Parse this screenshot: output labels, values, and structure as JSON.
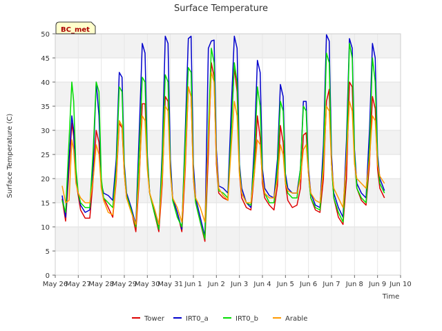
{
  "chart_data": {
    "type": "line",
    "title": "Surface Temperature",
    "xlabel": "Time",
    "ylabel": "Surface Temperature (C)",
    "ylim": [
      0,
      50
    ],
    "xlim": [
      0,
      15
    ],
    "yticks": [
      0,
      5,
      10,
      15,
      20,
      25,
      30,
      35,
      40,
      45,
      50
    ],
    "xticks": [
      {
        "x": 0,
        "label": "May 26"
      },
      {
        "x": 1,
        "label": "May 27"
      },
      {
        "x": 2,
        "label": "May 28"
      },
      {
        "x": 3,
        "label": "May 29"
      },
      {
        "x": 4,
        "label": "May 30"
      },
      {
        "x": 5,
        "label": "May 31"
      },
      {
        "x": 6,
        "label": "Jun 1"
      },
      {
        "x": 7,
        "label": "Jun 2"
      },
      {
        "x": 8,
        "label": "Jun 3"
      },
      {
        "x": 9,
        "label": "Jun 4"
      },
      {
        "x": 10,
        "label": "Jun 5"
      },
      {
        "x": 11,
        "label": "Jun 6"
      },
      {
        "x": 12,
        "label": "Jun 7"
      },
      {
        "x": 13,
        "label": "Jun 8"
      },
      {
        "x": 14,
        "label": "Jun 9"
      },
      {
        "x": 15,
        "label": "Jun 10"
      }
    ],
    "annotation": "BC_met",
    "grid": "horizontal bands",
    "legend_position": "bottom",
    "series": [
      {
        "name": "Tower",
        "color": "#dd0000",
        "x": [
          0.3,
          0.45,
          0.6,
          0.72,
          0.8,
          0.9,
          1.0,
          1.1,
          1.3,
          1.5,
          1.65,
          1.78,
          1.9,
          2.0,
          2.1,
          2.3,
          2.5,
          2.65,
          2.78,
          2.9,
          3.0,
          3.1,
          3.3,
          3.5,
          3.65,
          3.78,
          3.9,
          4.0,
          4.1,
          4.3,
          4.5,
          4.65,
          4.78,
          4.9,
          5.0,
          5.1,
          5.3,
          5.5,
          5.65,
          5.78,
          5.9,
          6.0,
          6.1,
          6.3,
          6.5,
          6.65,
          6.78,
          6.9,
          7.0,
          7.1,
          7.3,
          7.5,
          7.65,
          7.78,
          7.9,
          8.0,
          8.1,
          8.3,
          8.5,
          8.65,
          8.78,
          8.9,
          9.0,
          9.1,
          9.3,
          9.5,
          9.65,
          9.78,
          9.9,
          10.0,
          10.1,
          10.3,
          10.5,
          10.65,
          10.78,
          10.9,
          11.0,
          11.1,
          11.3,
          11.5,
          11.65,
          11.78,
          11.9,
          12.0,
          12.1,
          12.3,
          12.5,
          12.65,
          12.78,
          12.9,
          13.0,
          13.1,
          13.3,
          13.5,
          13.65,
          13.78,
          13.9,
          14.0,
          14.1,
          14.3
        ],
        "y": [
          15.8,
          11.2,
          22,
          31.5,
          28.8,
          19.5,
          16.5,
          13.5,
          11.8,
          11.8,
          20,
          30,
          27.5,
          18,
          16,
          14,
          12,
          19.5,
          31.5,
          30.5,
          21,
          16,
          13.5,
          9,
          20,
          35.5,
          35.5,
          23,
          17,
          13,
          9,
          19,
          37,
          36,
          22,
          16,
          13,
          9,
          22,
          39,
          37,
          20,
          15,
          11,
          7,
          25,
          44,
          41,
          23,
          17,
          16,
          15.5,
          32,
          43,
          38,
          21,
          16,
          14,
          13.5,
          21,
          33,
          28.5,
          19,
          16,
          14.5,
          13.5,
          18.5,
          31,
          27.5,
          19,
          15.5,
          14,
          14.5,
          18,
          29,
          29.5,
          21,
          16,
          13.5,
          13,
          20,
          36,
          38.5,
          23,
          16,
          12,
          10.5,
          20,
          40,
          39,
          24,
          18,
          15.5,
          14.5,
          23,
          37,
          34.5,
          22,
          18,
          16
        ]
      },
      {
        "name": "IRT0_a",
        "color": "#0000cc",
        "x": [
          0.3,
          0.45,
          0.6,
          0.72,
          0.8,
          0.9,
          1.0,
          1.1,
          1.3,
          1.5,
          1.65,
          1.78,
          1.9,
          2.0,
          2.1,
          2.3,
          2.5,
          2.65,
          2.78,
          2.9,
          3.0,
          3.1,
          3.3,
          3.5,
          3.65,
          3.78,
          3.9,
          4.0,
          4.1,
          4.3,
          4.5,
          4.65,
          4.78,
          4.9,
          5.0,
          5.1,
          5.3,
          5.5,
          5.65,
          5.78,
          5.9,
          6.0,
          6.1,
          6.3,
          6.5,
          6.65,
          6.78,
          6.9,
          7.0,
          7.1,
          7.3,
          7.5,
          7.65,
          7.78,
          7.9,
          8.0,
          8.1,
          8.3,
          8.5,
          8.65,
          8.78,
          8.9,
          9.0,
          9.1,
          9.3,
          9.5,
          9.65,
          9.78,
          9.9,
          10.0,
          10.1,
          10.3,
          10.5,
          10.65,
          10.78,
          10.9,
          11.0,
          11.1,
          11.3,
          11.5,
          11.65,
          11.78,
          11.9,
          12.0,
          12.1,
          12.3,
          12.5,
          12.65,
          12.78,
          12.9,
          13.0,
          13.1,
          13.3,
          13.5,
          13.65,
          13.78,
          13.9,
          14.0,
          14.1,
          14.3
        ],
        "y": [
          16.5,
          12,
          24,
          33,
          30,
          20,
          17,
          14.5,
          13,
          13.5,
          23,
          40,
          33,
          19,
          17,
          16.5,
          15.5,
          24,
          42,
          41,
          23,
          17,
          14,
          10.5,
          30,
          48,
          46,
          25,
          17,
          13.5,
          9.5,
          26,
          49.5,
          48,
          24,
          16,
          13,
          9.5,
          30,
          49,
          49.5,
          23,
          16,
          12,
          8,
          47,
          48.5,
          48.7,
          26,
          18.5,
          18,
          17,
          35,
          49.5,
          47,
          23,
          18,
          15,
          14,
          27,
          44.5,
          42,
          22,
          18,
          16.5,
          16,
          24,
          39.5,
          37,
          21,
          18,
          17,
          17,
          22,
          36,
          36,
          22,
          17,
          14.5,
          14,
          27,
          49.8,
          48.5,
          25,
          17,
          14,
          12,
          28,
          49,
          47,
          26,
          19,
          17,
          16,
          30,
          48,
          45,
          25,
          20,
          17.5
        ]
      },
      {
        "name": "IRT0_b",
        "color": "#00dd00",
        "x": [
          0.3,
          0.45,
          0.6,
          0.72,
          0.8,
          0.9,
          1.0,
          1.1,
          1.3,
          1.5,
          1.65,
          1.78,
          1.9,
          2.0,
          2.1,
          2.3,
          2.5,
          2.65,
          2.78,
          2.9,
          3.0,
          3.1,
          3.3,
          3.5,
          3.65,
          3.78,
          3.9,
          4.0,
          4.1,
          4.3,
          4.5,
          4.65,
          4.78,
          4.9,
          5.0,
          5.1,
          5.3,
          5.5,
          5.65,
          5.78,
          5.9,
          6.0,
          6.1,
          6.3,
          6.5,
          6.65,
          6.78,
          6.9,
          7.0,
          7.1,
          7.3,
          7.5,
          7.65,
          7.78,
          7.9,
          8.0,
          8.1,
          8.3,
          8.5,
          8.65,
          8.78,
          8.9,
          9.0,
          9.1,
          9.3,
          9.5,
          9.65,
          9.78,
          9.9,
          10.0,
          10.1,
          10.3,
          10.5,
          10.65,
          10.78,
          10.9,
          11.0,
          11.1,
          11.3,
          11.5,
          11.65,
          11.78,
          11.9,
          12.0,
          12.1,
          12.3,
          12.5,
          12.65,
          12.78,
          12.9,
          13.0,
          13.1,
          13.3,
          13.5,
          13.65,
          13.78,
          13.9,
          14.0,
          14.1,
          14.3
        ],
        "y": [
          15.5,
          13,
          28,
          40,
          36,
          22,
          17,
          15,
          14,
          14,
          26,
          40,
          38,
          20,
          16,
          15,
          14,
          22,
          39,
          38,
          22,
          16.5,
          13.5,
          10,
          26,
          41,
          40,
          24,
          17,
          13,
          9.5,
          24,
          41.5,
          40,
          22,
          15.5,
          12,
          10,
          28,
          43,
          42,
          21,
          15,
          11,
          7.5,
          30,
          47,
          44,
          24,
          17.5,
          17,
          16,
          30,
          44,
          40,
          22,
          17,
          15,
          14.5,
          24,
          39,
          35,
          20,
          17,
          15,
          15,
          22,
          36,
          34,
          20,
          17,
          16,
          16,
          22,
          35,
          34,
          21,
          16,
          14,
          13.5,
          24,
          46,
          44,
          23,
          16,
          13,
          11,
          25,
          48,
          45,
          25,
          18,
          16,
          15,
          26,
          45,
          40,
          24,
          19,
          17
        ]
      },
      {
        "name": "Arable",
        "color": "#ff9900",
        "x": [
          0.3,
          0.45,
          0.6,
          0.72,
          0.8,
          0.9,
          1.0,
          1.1,
          1.3,
          1.5,
          1.65,
          1.78,
          1.9,
          2.0,
          2.1,
          2.3,
          2.5,
          2.65,
          2.78,
          2.9,
          3.0,
          3.1,
          3.3,
          3.5,
          3.65,
          3.78,
          3.9,
          4.0,
          4.1,
          4.3,
          4.5,
          4.65,
          4.78,
          4.9,
          5.0,
          5.1,
          5.3,
          5.5,
          5.65,
          5.78,
          5.9,
          6.0,
          6.1,
          6.3,
          6.5,
          6.65,
          6.78,
          6.9,
          7.0,
          7.1,
          7.3,
          7.5,
          7.65,
          7.78,
          7.9,
          8.0,
          8.1,
          8.3,
          8.5,
          8.65,
          8.78,
          8.9,
          9.0,
          9.1,
          9.3,
          9.5,
          9.65,
          9.78,
          9.9,
          10.0,
          10.1,
          10.3,
          10.5,
          10.65,
          10.78,
          10.9,
          11.0,
          11.1,
          11.3,
          11.5,
          11.65,
          11.78,
          11.9,
          12.0,
          12.1,
          12.3,
          12.5,
          12.65,
          12.78,
          12.9,
          13.0,
          13.1,
          13.3,
          13.5,
          13.65,
          13.78,
          13.9,
          14.0,
          14.1,
          14.3
        ],
        "y": [
          18.5,
          15,
          15.5,
          28,
          26,
          19,
          17,
          16,
          15,
          15,
          20,
          27,
          25,
          18,
          15.5,
          13,
          12.5,
          20,
          32,
          31,
          21,
          16,
          13,
          10.5,
          21,
          33,
          32,
          22,
          17,
          14,
          10.5,
          20,
          35,
          34,
          21,
          16,
          14,
          11,
          23,
          39,
          37,
          20,
          16,
          14,
          11,
          28,
          42,
          40,
          24,
          18,
          16.5,
          15.5,
          27,
          36,
          33,
          21,
          17,
          15,
          15,
          21,
          28,
          27,
          20,
          17,
          16,
          16,
          20,
          27,
          25,
          19,
          17.5,
          17,
          17,
          20,
          26,
          27,
          21,
          17,
          15.5,
          15,
          22,
          35,
          34,
          23,
          18,
          16,
          14,
          24,
          36,
          34,
          23,
          20,
          19,
          18,
          24,
          33,
          32,
          23,
          20.5,
          19
        ]
      }
    ]
  }
}
